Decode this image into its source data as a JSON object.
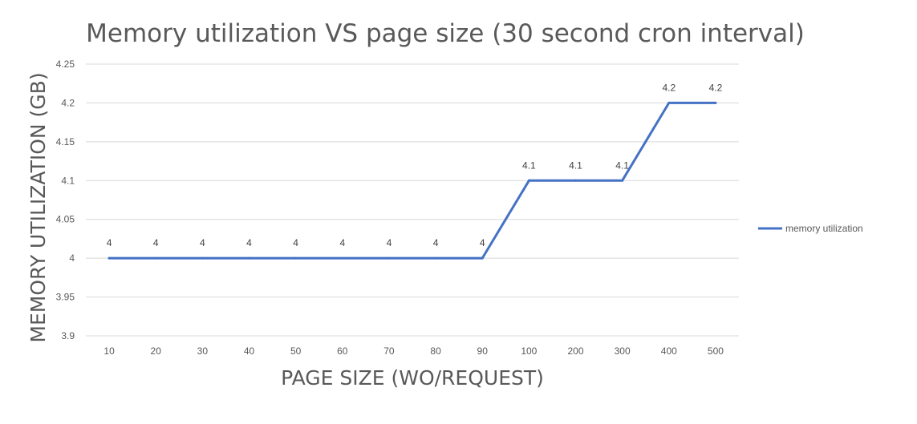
{
  "chart_data": {
    "type": "line",
    "title": "Memory utilization VS page size (30 second cron interval)",
    "xlabel": "PAGE SIZE (WO/REQUEST)",
    "ylabel": "MEMORY  UTILIZATION (GB)",
    "categories": [
      "10",
      "20",
      "30",
      "40",
      "50",
      "60",
      "70",
      "80",
      "90",
      "100",
      "200",
      "300",
      "400",
      "500"
    ],
    "series": [
      {
        "name": "memory utilization",
        "values": [
          4,
          4,
          4,
          4,
          4,
          4,
          4,
          4,
          4,
          4.1,
          4.1,
          4.1,
          4.2,
          4.2
        ],
        "data_labels": [
          "4",
          "4",
          "4",
          "4",
          "4",
          "4",
          "4",
          "4",
          "4",
          "4.1",
          "4.1",
          "4.1",
          "4.2",
          "4.2"
        ],
        "color": "#4472c4"
      }
    ],
    "ylim": [
      3.9,
      4.25
    ],
    "yticks": [
      "4.25",
      "4.2",
      "4.15",
      "4.1",
      "4.05",
      "4",
      "3.95",
      "3.9"
    ],
    "grid": true,
    "legend": "right"
  }
}
